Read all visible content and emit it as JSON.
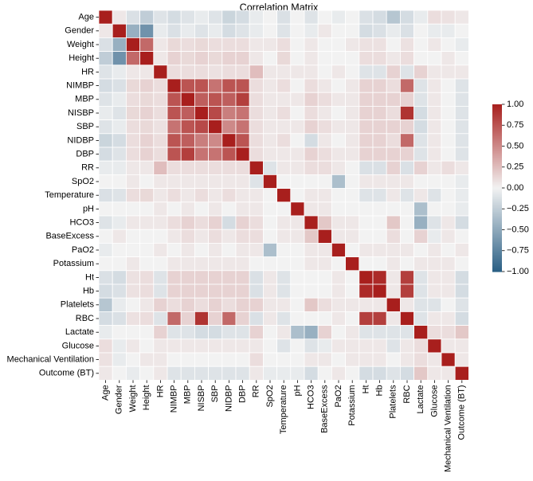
{
  "chart_data": {
    "type": "heatmap",
    "title": "Correlation Matrix",
    "xlabel": "",
    "ylabel": "",
    "colormap": {
      "negative": "#2a5f84",
      "center": "#f2f2f2",
      "positive": "#a81f1d"
    },
    "color_range": [
      -1.0,
      1.0
    ],
    "colorbar_ticks": [
      "1.00",
      "0.75",
      "0.50",
      "0.25",
      "0.00",
      "−0.25",
      "−0.50",
      "−0.75",
      "−1.00"
    ],
    "colorbar_tick_values": [
      1.0,
      0.75,
      0.5,
      0.25,
      0.0,
      -0.25,
      -0.5,
      -0.75,
      -1.0
    ],
    "variables": [
      "Age",
      "Gender",
      "Weight",
      "Height",
      "HR",
      "NIMBP",
      "MBP",
      "NISBP",
      "SBP",
      "NIDBP",
      "DBP",
      "RR",
      "SpO2",
      "Temperature",
      "pH",
      "HCO3",
      "BaseExcess",
      "PaO2",
      "Potassium",
      "Ht",
      "Hb",
      "Platelets",
      "RBC",
      "Lactate",
      "Glucose",
      "Mechanical Ventilation",
      "Outcome (BT)"
    ],
    "matrix": [
      [
        1.0,
        0.05,
        -0.12,
        -0.25,
        -0.1,
        -0.15,
        -0.1,
        -0.05,
        -0.1,
        -0.2,
        -0.15,
        -0.05,
        0.0,
        -0.12,
        0.0,
        -0.1,
        0.0,
        -0.05,
        0.0,
        -0.12,
        -0.15,
        -0.3,
        -0.15,
        -0.05,
        0.1,
        0.08,
        0.05
      ],
      [
        0.05,
        1.0,
        -0.45,
        -0.65,
        -0.05,
        -0.12,
        -0.05,
        -0.1,
        -0.05,
        -0.15,
        -0.1,
        -0.05,
        0.0,
        -0.1,
        0.0,
        -0.05,
        0.05,
        0.0,
        0.0,
        -0.15,
        -0.12,
        -0.05,
        -0.12,
        0.0,
        -0.05,
        -0.05,
        0.0
      ],
      [
        -0.12,
        -0.45,
        1.0,
        0.65,
        0.05,
        0.12,
        0.1,
        0.12,
        0.1,
        0.1,
        0.1,
        0.05,
        0.05,
        0.1,
        0.0,
        0.05,
        0.0,
        0.0,
        0.05,
        0.08,
        0.08,
        0.0,
        0.08,
        0.0,
        0.05,
        0.0,
        -0.05
      ],
      [
        -0.25,
        -0.65,
        0.65,
        1.0,
        0.05,
        0.15,
        0.12,
        0.15,
        0.12,
        0.15,
        0.15,
        0.05,
        0.0,
        0.12,
        0.0,
        0.05,
        0.0,
        0.0,
        0.0,
        0.1,
        0.1,
        0.05,
        0.1,
        0.0,
        0.0,
        0.05,
        0.0
      ],
      [
        -0.1,
        -0.05,
        0.05,
        0.05,
        1.0,
        0.1,
        0.1,
        0.1,
        0.08,
        0.1,
        0.1,
        0.25,
        0.05,
        0.05,
        0.05,
        0.05,
        0.0,
        0.05,
        0.0,
        -0.1,
        -0.1,
        0.15,
        -0.1,
        0.15,
        0.05,
        0.05,
        0.05
      ],
      [
        -0.15,
        -0.12,
        0.12,
        0.15,
        0.1,
        1.0,
        0.75,
        0.75,
        0.6,
        0.75,
        0.75,
        0.1,
        0.05,
        0.1,
        0.0,
        0.1,
        0.05,
        0.0,
        0.05,
        0.15,
        0.15,
        0.1,
        0.65,
        -0.1,
        0.05,
        0.0,
        -0.1
      ],
      [
        -0.1,
        -0.05,
        0.1,
        0.12,
        0.1,
        0.75,
        1.0,
        0.7,
        0.75,
        0.7,
        0.85,
        0.1,
        0.05,
        0.05,
        0.05,
        0.15,
        0.1,
        0.05,
        0.05,
        0.15,
        0.15,
        0.15,
        0.15,
        -0.1,
        0.05,
        0.0,
        -0.1
      ],
      [
        -0.05,
        -0.1,
        0.12,
        0.15,
        0.1,
        0.75,
        0.7,
        1.0,
        0.8,
        0.55,
        0.6,
        0.1,
        0.05,
        0.1,
        0.0,
        0.1,
        0.05,
        0.0,
        0.05,
        0.15,
        0.15,
        0.1,
        0.9,
        -0.15,
        0.05,
        0.0,
        -0.1
      ],
      [
        -0.1,
        -0.05,
        0.1,
        0.12,
        0.08,
        0.6,
        0.75,
        0.8,
        1.0,
        0.5,
        0.6,
        0.1,
        0.05,
        0.05,
        0.05,
        0.15,
        0.1,
        0.05,
        0.05,
        0.15,
        0.15,
        0.15,
        0.15,
        -0.15,
        0.05,
        0.0,
        -0.1
      ],
      [
        -0.2,
        -0.15,
        0.1,
        0.15,
        0.1,
        0.75,
        0.7,
        0.55,
        0.5,
        1.0,
        0.75,
        0.1,
        0.05,
        0.1,
        0.0,
        -0.15,
        0.05,
        0.0,
        0.05,
        0.15,
        0.15,
        0.1,
        0.65,
        -0.1,
        0.05,
        0.0,
        -0.1
      ],
      [
        -0.15,
        -0.1,
        0.1,
        0.15,
        0.1,
        0.75,
        0.85,
        0.6,
        0.6,
        0.75,
        1.0,
        0.1,
        0.05,
        0.05,
        0.05,
        0.15,
        0.1,
        0.05,
        0.05,
        0.15,
        0.15,
        0.15,
        0.15,
        -0.1,
        0.05,
        0.0,
        -0.1
      ],
      [
        -0.05,
        -0.05,
        0.05,
        0.05,
        0.25,
        0.1,
        0.1,
        0.1,
        0.1,
        0.1,
        0.1,
        1.0,
        -0.1,
        0.05,
        0.05,
        0.1,
        0.1,
        0.05,
        0.0,
        -0.12,
        -0.12,
        0.15,
        -0.12,
        0.15,
        0.05,
        0.1,
        0.05
      ],
      [
        0.0,
        0.0,
        0.05,
        0.0,
        0.05,
        0.05,
        0.05,
        0.05,
        0.05,
        0.05,
        0.05,
        -0.1,
        1.0,
        0.0,
        0.0,
        0.0,
        0.0,
        -0.35,
        0.0,
        0.05,
        0.05,
        0.05,
        0.05,
        0.0,
        0.0,
        0.0,
        -0.05
      ],
      [
        -0.12,
        -0.1,
        0.1,
        0.12,
        0.05,
        0.1,
        0.05,
        0.1,
        0.05,
        0.1,
        0.05,
        0.05,
        0.0,
        1.0,
        0.0,
        0.05,
        0.05,
        0.0,
        0.0,
        -0.1,
        -0.1,
        0.05,
        -0.1,
        0.05,
        -0.1,
        0.0,
        -0.05
      ],
      [
        0.0,
        0.0,
        0.0,
        0.0,
        0.05,
        0.0,
        0.05,
        0.0,
        0.05,
        0.0,
        0.05,
        0.05,
        0.0,
        0.0,
        1.0,
        0.05,
        0.05,
        0.0,
        0.0,
        0.0,
        0.0,
        0.0,
        0.0,
        -0.35,
        0.0,
        0.0,
        -0.05
      ],
      [
        -0.1,
        -0.05,
        0.05,
        0.05,
        0.05,
        0.1,
        0.15,
        0.1,
        0.15,
        -0.15,
        0.15,
        0.1,
        0.0,
        0.05,
        0.05,
        1.0,
        0.2,
        0.05,
        0.05,
        0.0,
        0.0,
        0.2,
        0.0,
        -0.45,
        -0.1,
        0.05,
        -0.15
      ],
      [
        0.0,
        0.05,
        0.0,
        0.0,
        0.0,
        0.05,
        0.1,
        0.05,
        0.1,
        0.05,
        0.1,
        0.1,
        0.0,
        0.05,
        0.05,
        0.2,
        1.0,
        0.05,
        0.05,
        0.0,
        0.0,
        0.1,
        0.0,
        0.15,
        -0.05,
        0.05,
        0.0
      ],
      [
        -0.05,
        0.0,
        0.0,
        0.0,
        0.05,
        0.0,
        0.05,
        0.0,
        0.05,
        0.0,
        0.05,
        0.05,
        -0.35,
        0.0,
        0.0,
        0.05,
        0.05,
        1.0,
        0.0,
        0.05,
        0.05,
        0.05,
        0.05,
        0.0,
        0.05,
        0.0,
        0.05
      ],
      [
        0.0,
        0.0,
        0.05,
        0.0,
        0.0,
        0.05,
        0.05,
        0.05,
        0.05,
        0.05,
        0.05,
        0.0,
        0.0,
        0.0,
        0.0,
        0.05,
        0.05,
        0.0,
        1.0,
        0.0,
        0.0,
        0.05,
        0.0,
        0.05,
        0.05,
        0.05,
        0.0
      ],
      [
        -0.12,
        -0.15,
        0.08,
        0.1,
        -0.1,
        0.15,
        0.15,
        0.15,
        0.15,
        0.15,
        0.15,
        -0.12,
        0.05,
        -0.1,
        0.0,
        0.0,
        0.0,
        0.05,
        0.0,
        1.0,
        0.95,
        0.05,
        0.85,
        -0.1,
        0.05,
        0.05,
        -0.15
      ],
      [
        -0.15,
        -0.12,
        0.08,
        0.1,
        -0.1,
        0.15,
        0.15,
        0.15,
        0.15,
        0.15,
        0.15,
        -0.12,
        0.05,
        -0.1,
        0.0,
        0.0,
        0.0,
        0.05,
        0.0,
        0.95,
        1.0,
        0.05,
        0.85,
        -0.1,
        0.05,
        0.05,
        -0.15
      ],
      [
        -0.3,
        -0.05,
        0.0,
        0.05,
        0.15,
        0.1,
        0.15,
        0.1,
        0.15,
        0.1,
        0.15,
        0.15,
        0.05,
        0.05,
        0.0,
        0.2,
        0.1,
        0.05,
        0.05,
        0.05,
        0.05,
        1.0,
        0.05,
        -0.1,
        -0.1,
        0.0,
        -0.1
      ],
      [
        -0.15,
        -0.12,
        0.08,
        0.1,
        -0.1,
        0.65,
        0.15,
        0.9,
        0.15,
        0.65,
        0.15,
        -0.12,
        0.05,
        -0.1,
        0.0,
        0.0,
        0.0,
        0.05,
        0.0,
        0.85,
        0.85,
        0.05,
        1.0,
        -0.1,
        0.05,
        0.05,
        -0.15
      ],
      [
        -0.05,
        0.0,
        0.0,
        0.0,
        0.15,
        -0.1,
        -0.1,
        -0.15,
        -0.15,
        -0.1,
        -0.1,
        0.15,
        0.0,
        0.05,
        -0.35,
        -0.45,
        0.15,
        0.0,
        0.05,
        -0.1,
        -0.1,
        -0.1,
        -0.1,
        1.0,
        0.1,
        0.1,
        0.2
      ],
      [
        0.1,
        -0.05,
        0.05,
        0.0,
        0.05,
        0.05,
        0.05,
        0.05,
        0.05,
        0.05,
        0.05,
        0.05,
        0.0,
        -0.1,
        0.0,
        -0.1,
        -0.05,
        0.05,
        0.05,
        0.05,
        0.05,
        -0.1,
        0.05,
        0.1,
        1.0,
        0.05,
        0.05
      ],
      [
        0.08,
        -0.05,
        0.0,
        0.05,
        0.05,
        0.0,
        0.0,
        0.0,
        0.0,
        0.0,
        0.0,
        0.1,
        0.0,
        0.0,
        0.0,
        0.05,
        0.05,
        0.0,
        0.05,
        0.05,
        0.05,
        0.0,
        0.05,
        0.1,
        0.05,
        1.0,
        0.05
      ],
      [
        0.05,
        0.0,
        -0.05,
        0.0,
        0.05,
        -0.1,
        -0.1,
        -0.1,
        -0.1,
        -0.1,
        -0.1,
        0.05,
        -0.05,
        -0.05,
        -0.05,
        -0.15,
        0.0,
        0.05,
        0.0,
        -0.15,
        -0.15,
        -0.1,
        -0.15,
        0.2,
        0.05,
        0.05,
        1.0
      ]
    ]
  }
}
